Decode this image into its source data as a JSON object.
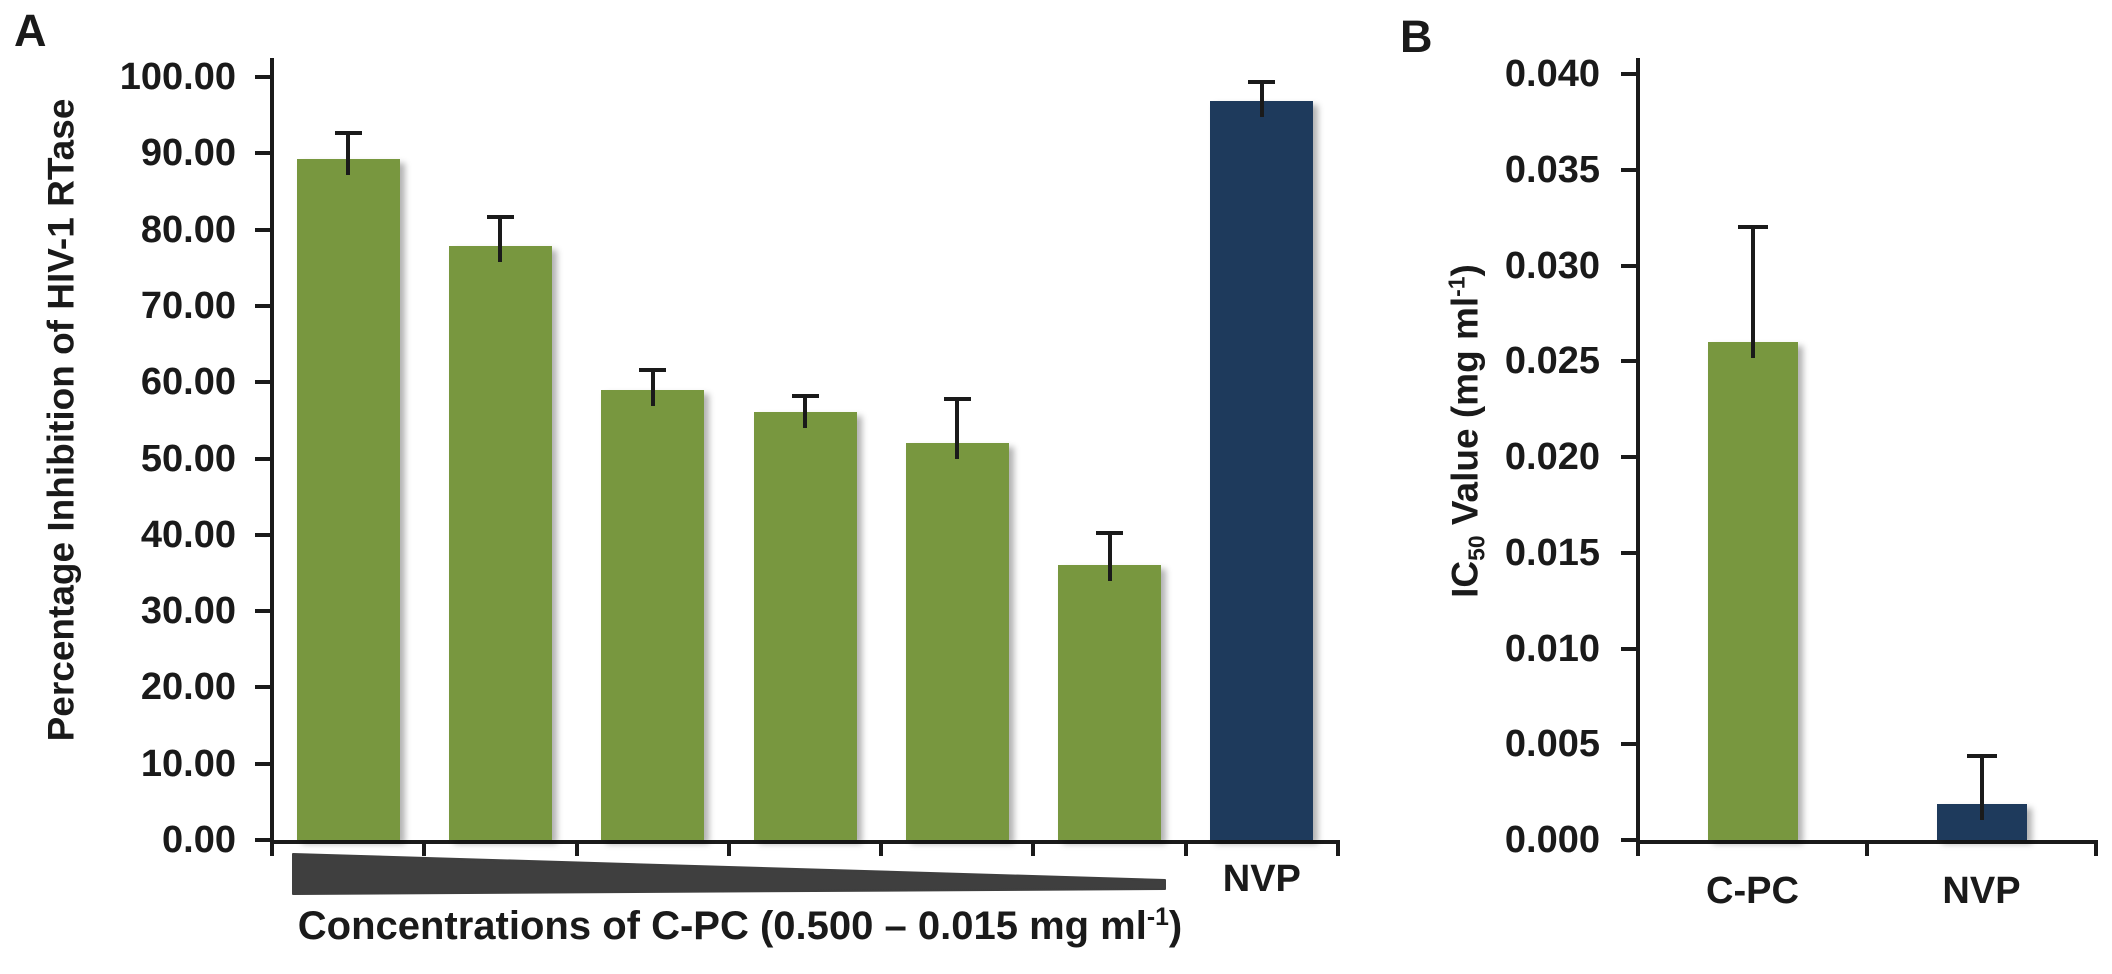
{
  "panels": {
    "a_label": "A",
    "b_label": "B"
  },
  "colors": {
    "bar_green": "#78973F",
    "bar_navy": "#1E3A5C",
    "wedge_gray": "#3F3F3F",
    "axis_black": "#1A1A1A",
    "background": "#FFFFFF"
  },
  "chart_data": [
    {
      "panel": "A",
      "type": "bar",
      "title": "",
      "ylabel": "Percentage Inhibition of HIV-1 RTase",
      "xlabel": "Concentrations of C-PC (0.500 – 0.015 mg ml-1)",
      "ylabel_parts": [
        {
          "t": "Percentage Inhibition of HIV-1 RTase"
        }
      ],
      "xlabel_parts": [
        {
          "t": "Concentrations of C-PC (0.500 – 0.015 mg ml"
        },
        {
          "t": "-1",
          "style": "sup"
        },
        {
          "t": ")"
        }
      ],
      "ylim": [
        0,
        100
      ],
      "ytick_labels": [
        "0.00",
        "10.00",
        "20.00",
        "30.00",
        "40.00",
        "50.00",
        "60.00",
        "70.00",
        "80.00",
        "90.00",
        "100.00"
      ],
      "categories": [
        "",
        "",
        "",
        "",
        "",
        "",
        "NVP"
      ],
      "values": [
        89.2,
        77.9,
        59.0,
        56.1,
        52.0,
        36.0,
        96.8
      ],
      "errors_plus": [
        3.4,
        3.7,
        2.6,
        2.1,
        5.8,
        4.3,
        2.6
      ],
      "bar_color_keys": [
        "green",
        "green",
        "green",
        "green",
        "green",
        "green",
        "navy"
      ],
      "legend": null,
      "grid": false,
      "annotation": "decreasing-concentration wedge from 0.500 to 0.015 mg ml-1 under the six C-PC bars"
    },
    {
      "panel": "B",
      "type": "bar",
      "title": "",
      "ylabel": "IC50 Value (mg ml-1)",
      "xlabel": "",
      "ylabel_parts": [
        {
          "t": "IC"
        },
        {
          "t": "50",
          "style": "sub"
        },
        {
          "t": " Value (mg ml"
        },
        {
          "t": "-1",
          "style": "sup"
        },
        {
          "t": ")"
        }
      ],
      "xlabel_parts": [],
      "ylim": [
        0,
        0.04
      ],
      "ytick_labels": [
        "0.000",
        "0.005",
        "0.010",
        "0.015",
        "0.020",
        "0.025",
        "0.030",
        "0.035",
        "0.040"
      ],
      "categories": [
        "C-PC",
        "NVP"
      ],
      "values": [
        0.026,
        0.0019
      ],
      "errors_plus": [
        0.006,
        0.0025
      ],
      "bar_color_keys": [
        "green",
        "navy"
      ],
      "legend": null,
      "grid": false,
      "annotation": ""
    }
  ]
}
